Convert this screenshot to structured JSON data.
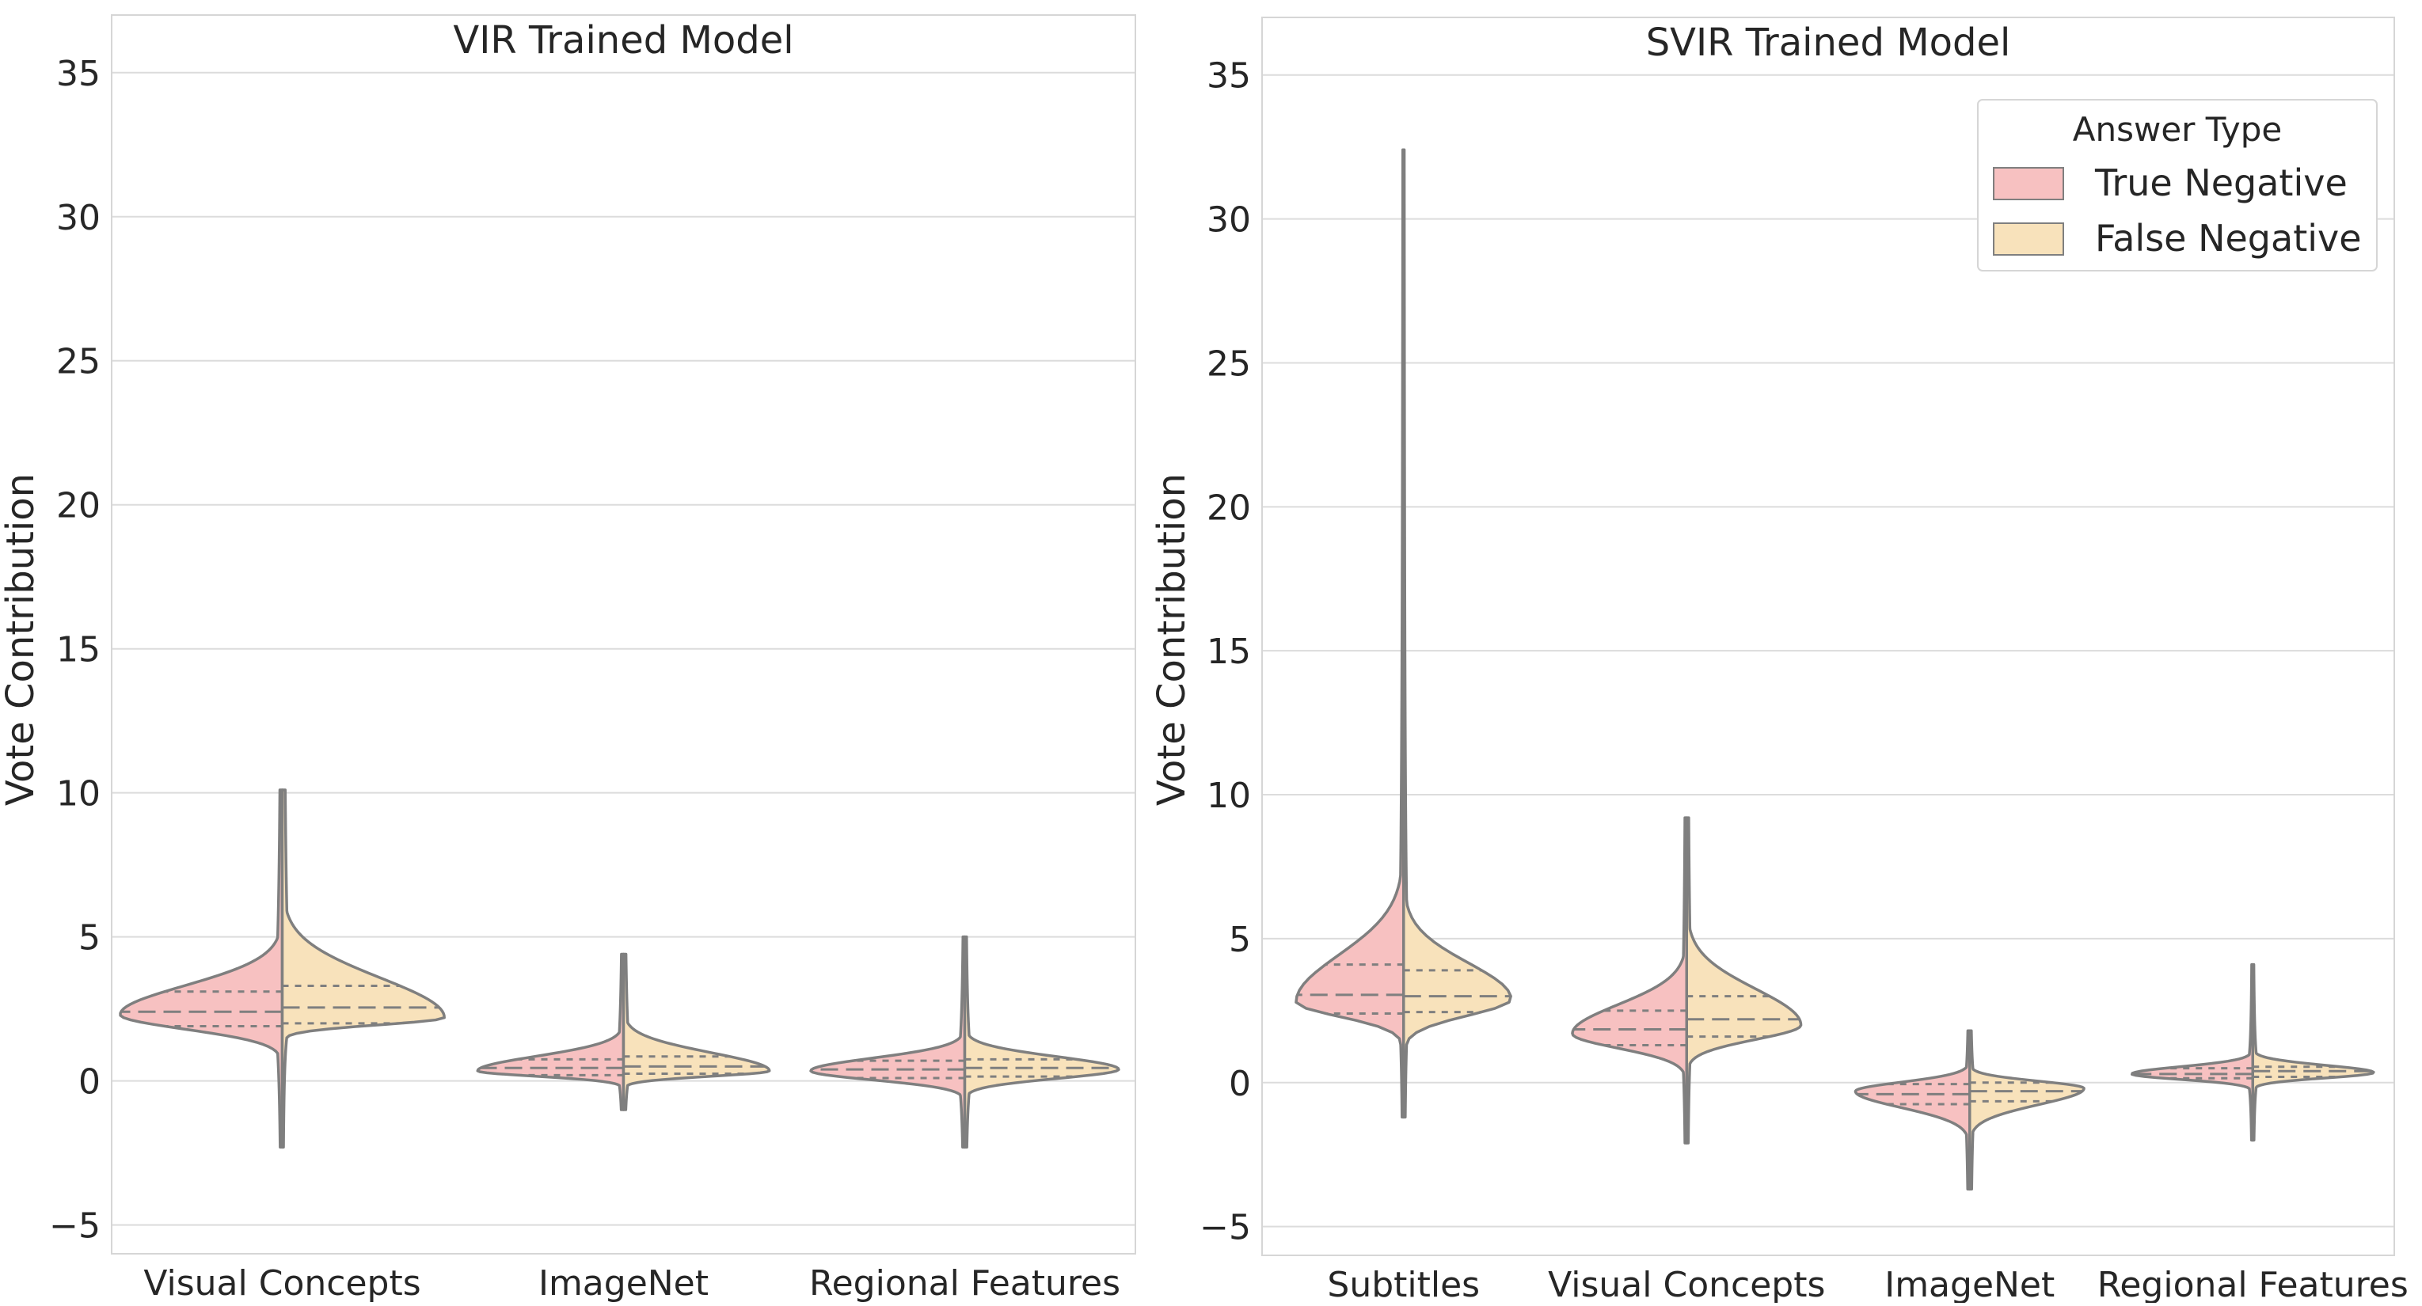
{
  "chart_data": [
    {
      "type": "violin",
      "title": "VIR Trained Model",
      "xlabel": "",
      "ylabel": "Vote Contribution",
      "ylim": [
        -6,
        37
      ],
      "yticks": [
        -5,
        0,
        5,
        10,
        15,
        20,
        25,
        30,
        35
      ],
      "ytick_labels": [
        "−5",
        "0",
        "5",
        "10",
        "15",
        "20",
        "25",
        "30",
        "35"
      ],
      "grid": "horizontal",
      "categories": [
        "Visual Concepts",
        "ImageNet",
        "Regional Features"
      ],
      "series": [
        {
          "name": "True Negative",
          "color": "#f7c1c1",
          "violins": [
            {
              "min": -2.3,
              "max": 10.1,
              "q1": 1.9,
              "median": 2.4,
              "q3": 3.1,
              "mode": 2.3,
              "peak_halfwidth": 1.0
            },
            {
              "min": -1.0,
              "max": 4.4,
              "q1": 0.2,
              "median": 0.45,
              "q3": 0.75,
              "mode": 0.35,
              "peak_halfwidth": 0.9
            },
            {
              "min": -2.3,
              "max": 5.0,
              "q1": 0.1,
              "median": 0.4,
              "q3": 0.7,
              "mode": 0.35,
              "peak_halfwidth": 0.95
            }
          ]
        },
        {
          "name": "False Negative",
          "color": "#f8e2bb",
          "violins": [
            {
              "min": -2.3,
              "max": 10.1,
              "q1": 2.0,
              "median": 2.55,
              "q3": 3.3,
              "mode": 2.2,
              "peak_halfwidth": 1.0
            },
            {
              "min": -1.0,
              "max": 4.4,
              "q1": 0.25,
              "median": 0.5,
              "q3": 0.85,
              "mode": 0.35,
              "peak_halfwidth": 0.9
            },
            {
              "min": -2.3,
              "max": 5.0,
              "q1": 0.15,
              "median": 0.45,
              "q3": 0.75,
              "mode": 0.4,
              "peak_halfwidth": 0.95
            }
          ]
        }
      ]
    },
    {
      "type": "violin",
      "title": "SVIR Trained Model",
      "xlabel": "",
      "ylabel": "Vote Contribution",
      "ylim": [
        -6,
        37
      ],
      "yticks": [
        -5,
        0,
        5,
        10,
        15,
        20,
        25,
        30,
        35
      ],
      "ytick_labels": [
        "−5",
        "0",
        "5",
        "10",
        "15",
        "20",
        "25",
        "30",
        "35"
      ],
      "grid": "horizontal",
      "legend": {
        "title": "Answer Type",
        "placement": "top-right"
      },
      "categories": [
        "Subtitles",
        "Visual Concepts",
        "ImageNet",
        "Regional Features"
      ],
      "series": [
        {
          "name": "True Negative",
          "color": "#f7c1c1",
          "violins": [
            {
              "min": -1.2,
              "max": 32.4,
              "q1": 2.4,
              "median": 3.05,
              "q3": 4.1,
              "mode": 2.8,
              "peak_halfwidth": 0.8
            },
            {
              "min": -2.1,
              "max": 9.2,
              "q1": 1.3,
              "median": 1.85,
              "q3": 2.5,
              "mode": 1.7,
              "peak_halfwidth": 0.85
            },
            {
              "min": -3.7,
              "max": 1.8,
              "q1": -0.75,
              "median": -0.4,
              "q3": -0.05,
              "mode": -0.3,
              "peak_halfwidth": 0.85
            },
            {
              "min": -2.0,
              "max": 4.1,
              "q1": 0.15,
              "median": 0.3,
              "q3": 0.5,
              "mode": 0.3,
              "peak_halfwidth": 0.9
            }
          ]
        },
        {
          "name": "False Negative",
          "color": "#f8e2bb",
          "violins": [
            {
              "min": -1.2,
              "max": 32.4,
              "q1": 2.45,
              "median": 3.0,
              "q3": 3.9,
              "mode": 2.9,
              "peak_halfwidth": 0.8
            },
            {
              "min": -2.1,
              "max": 9.2,
              "q1": 1.6,
              "median": 2.2,
              "q3": 3.0,
              "mode": 2.0,
              "peak_halfwidth": 0.85
            },
            {
              "min": -3.7,
              "max": 1.8,
              "q1": -0.65,
              "median": -0.3,
              "q3": 0.0,
              "mode": -0.2,
              "peak_halfwidth": 0.85
            },
            {
              "min": -2.0,
              "max": 4.1,
              "q1": 0.2,
              "median": 0.4,
              "q3": 0.55,
              "mode": 0.35,
              "peak_halfwidth": 0.9
            }
          ]
        }
      ]
    }
  ],
  "colors": {
    "grid": "#dcdcdc",
    "frame": "#d6d6d6",
    "outline": "#7f7f7f",
    "text": "#262626"
  }
}
